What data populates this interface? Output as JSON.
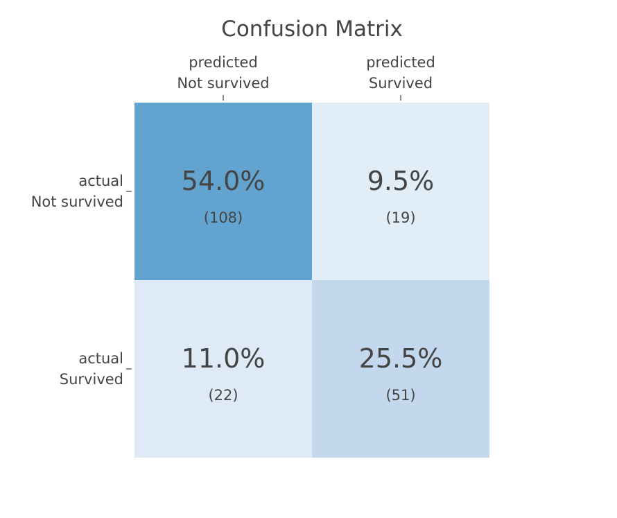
{
  "chart_data": {
    "type": "heatmap",
    "title": "Confusion Matrix",
    "x_categories": [
      [
        "predicted",
        "Not survived"
      ],
      [
        "predicted",
        "Survived"
      ]
    ],
    "y_categories": [
      [
        "actual",
        "Not survived"
      ],
      [
        "actual",
        "Survived"
      ]
    ],
    "cells": [
      [
        {
          "percent_label": "54.0%",
          "count_label": "(108)",
          "percent": 54.0,
          "count": 108
        },
        {
          "percent_label": "9.5%",
          "count_label": "(19)",
          "percent": 9.5,
          "count": 19
        }
      ],
      [
        {
          "percent_label": "11.0%",
          "count_label": "(22)",
          "percent": 11.0,
          "count": 22
        },
        {
          "percent_label": "25.5%",
          "count_label": "(51)",
          "percent": 25.5,
          "count": 51
        }
      ]
    ],
    "colors": {
      "low": "#e1edf7",
      "mid": "#c4d9ed",
      "high": "#62a4cf"
    },
    "grid": false,
    "legend": "none"
  }
}
